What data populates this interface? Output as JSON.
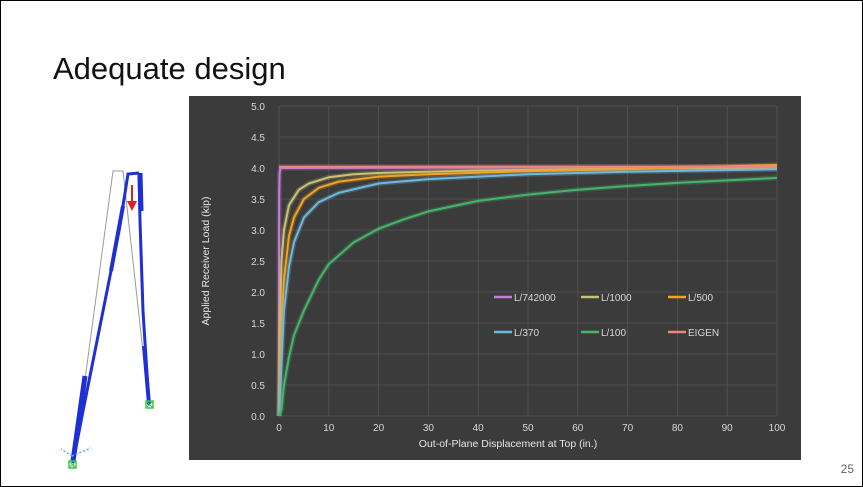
{
  "slide": {
    "title": "Adequate design",
    "page_number": "25"
  },
  "chart_data": {
    "type": "line",
    "xlabel": "Out-of-Plane Displacement at Top (in.)",
    "ylabel": "Applied Receiver Load (kip)",
    "xlim": [
      0,
      100
    ],
    "ylim": [
      0,
      5.0
    ],
    "x_ticks": [
      "0",
      "10",
      "20",
      "30",
      "40",
      "50",
      "60",
      "70",
      "80",
      "90",
      "100"
    ],
    "y_ticks": [
      "0.0",
      "0.5",
      "1.0",
      "1.5",
      "2.0",
      "2.5",
      "3.0",
      "3.5",
      "4.0",
      "4.5",
      "5.0"
    ],
    "grid": true,
    "legend_position": "center-right",
    "background": "#3b3b3b",
    "series": [
      {
        "name": "L/742000",
        "color": "#c77ddb",
        "points": [
          [
            0,
            0
          ],
          [
            0.01,
            1.5
          ],
          [
            0.02,
            3.0
          ],
          [
            0.05,
            3.6
          ],
          [
            0.1,
            3.9
          ],
          [
            0.3,
            4.0
          ],
          [
            100,
            4.02
          ]
        ]
      },
      {
        "name": "L/1000",
        "color": "#c9c274",
        "points": [
          [
            0,
            0
          ],
          [
            0.2,
            1.5
          ],
          [
            0.5,
            2.5
          ],
          [
            1,
            3.0
          ],
          [
            2,
            3.4
          ],
          [
            4,
            3.65
          ],
          [
            6,
            3.75
          ],
          [
            10,
            3.85
          ],
          [
            15,
            3.9
          ],
          [
            20,
            3.92
          ],
          [
            40,
            3.96
          ],
          [
            70,
            3.99
          ],
          [
            100,
            4.0
          ]
        ]
      },
      {
        "name": "L/500",
        "color": "#f5a31e",
        "points": [
          [
            0,
            0
          ],
          [
            0.5,
            1.5
          ],
          [
            1,
            2.2
          ],
          [
            2,
            2.9
          ],
          [
            3,
            3.2
          ],
          [
            5,
            3.5
          ],
          [
            8,
            3.68
          ],
          [
            12,
            3.78
          ],
          [
            20,
            3.86
          ],
          [
            30,
            3.9
          ],
          [
            50,
            3.95
          ],
          [
            70,
            3.98
          ],
          [
            100,
            4.05
          ]
        ]
      },
      {
        "name": "L/370",
        "color": "#6fb8de",
        "points": [
          [
            0,
            0
          ],
          [
            1,
            1.7
          ],
          [
            2,
            2.4
          ],
          [
            3,
            2.8
          ],
          [
            5,
            3.2
          ],
          [
            8,
            3.45
          ],
          [
            12,
            3.6
          ],
          [
            20,
            3.75
          ],
          [
            30,
            3.82
          ],
          [
            50,
            3.9
          ],
          [
            70,
            3.94
          ],
          [
            100,
            3.98
          ]
        ]
      },
      {
        "name": "L/100",
        "color": "#46b46b",
        "points": [
          [
            0,
            0
          ],
          [
            0.5,
            0.1
          ],
          [
            1,
            0.5
          ],
          [
            2,
            0.95
          ],
          [
            3,
            1.3
          ],
          [
            5,
            1.7
          ],
          [
            8,
            2.2
          ],
          [
            10,
            2.45
          ],
          [
            15,
            2.8
          ],
          [
            20,
            3.02
          ],
          [
            25,
            3.17
          ],
          [
            30,
            3.3
          ],
          [
            40,
            3.47
          ],
          [
            50,
            3.57
          ],
          [
            60,
            3.65
          ],
          [
            70,
            3.71
          ],
          [
            80,
            3.76
          ],
          [
            90,
            3.8
          ],
          [
            100,
            3.84
          ]
        ]
      },
      {
        "name": "EIGEN",
        "color": "#f08478",
        "points": [
          [
            0,
            4.02
          ],
          [
            100,
            4.02
          ]
        ]
      }
    ]
  },
  "figure": {
    "member_color": "#1f2fd6",
    "load_arrow_color": "#e02020",
    "support_color": "#3cc94b"
  }
}
